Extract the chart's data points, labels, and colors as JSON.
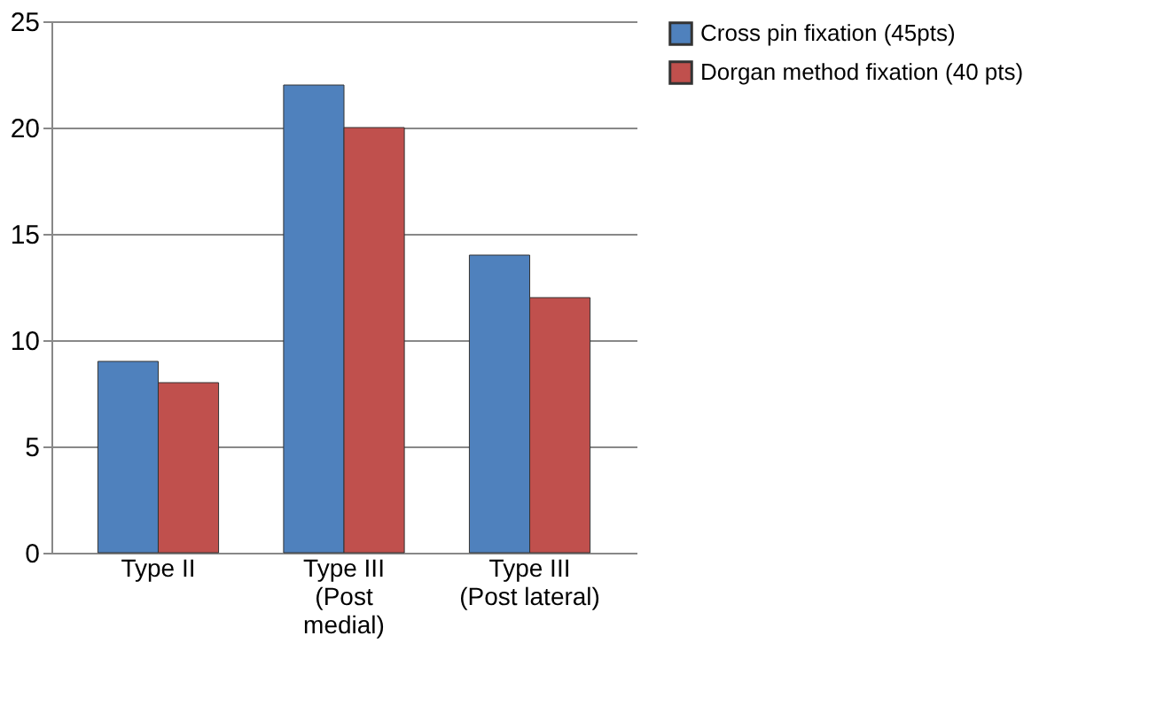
{
  "chart_data": {
    "type": "bar",
    "categories": [
      "Type II",
      "Type III\n(Post\nmedial)",
      "Type III\n(Post lateral)"
    ],
    "series": [
      {
        "name": "Cross pin fixation (45pts)",
        "color": "#4f81bd",
        "values": [
          9,
          22,
          14
        ]
      },
      {
        "name": "Dorgan method fixation (40 pts)",
        "color": "#c0504d",
        "values": [
          8,
          20,
          12
        ]
      }
    ],
    "ylim": [
      0,
      25
    ],
    "yticks": [
      0,
      5,
      10,
      15,
      20,
      25
    ],
    "grid": "y",
    "legend": "right"
  }
}
